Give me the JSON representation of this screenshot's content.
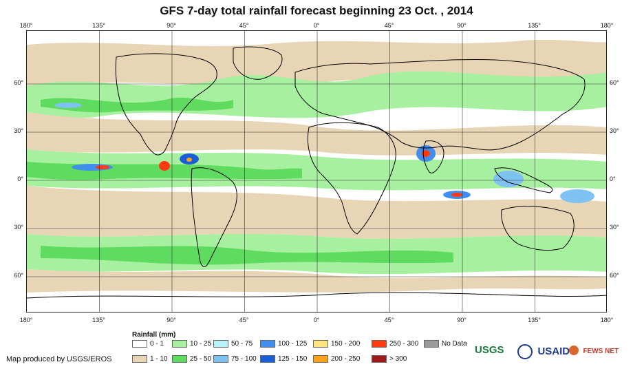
{
  "title": "GFS 7-day total rainfall forecast beginning 23 Oct. , 2014",
  "axes": {
    "longitude_labels": [
      "180°",
      "135°",
      "90°",
      "45°",
      "0°",
      "45°",
      "90°",
      "135°",
      "180°"
    ],
    "latitude_labels": [
      "60°",
      "30°",
      "0°",
      "30°",
      "60°"
    ]
  },
  "legend": {
    "title": "Rainfall (mm)",
    "items": [
      {
        "label": "0 - 1",
        "color": "#ffffff"
      },
      {
        "label": "1 - 10",
        "color": "#e8d5b5"
      },
      {
        "label": "10 - 25",
        "color": "#a7f0a0"
      },
      {
        "label": "25 - 50",
        "color": "#5fdc5f"
      },
      {
        "label": "50 - 75",
        "color": "#b8f2f8"
      },
      {
        "label": "75 - 100",
        "color": "#7ec2f2"
      },
      {
        "label": "100 - 125",
        "color": "#3f8ef0"
      },
      {
        "label": "125 - 150",
        "color": "#1a5ed8"
      },
      {
        "label": "150 - 200",
        "color": "#ffe680"
      },
      {
        "label": "200 - 250",
        "color": "#ffa31a"
      },
      {
        "label": "250 - 300",
        "color": "#ff3a10"
      },
      {
        "label": "> 300",
        "color": "#a01818"
      },
      {
        "label": "No Data",
        "color": "#9a9a9a"
      }
    ]
  },
  "footer": {
    "note": "Map produced by USGS/EROS"
  },
  "logos": [
    "USGS",
    "USAID",
    "FEWS NET"
  ]
}
